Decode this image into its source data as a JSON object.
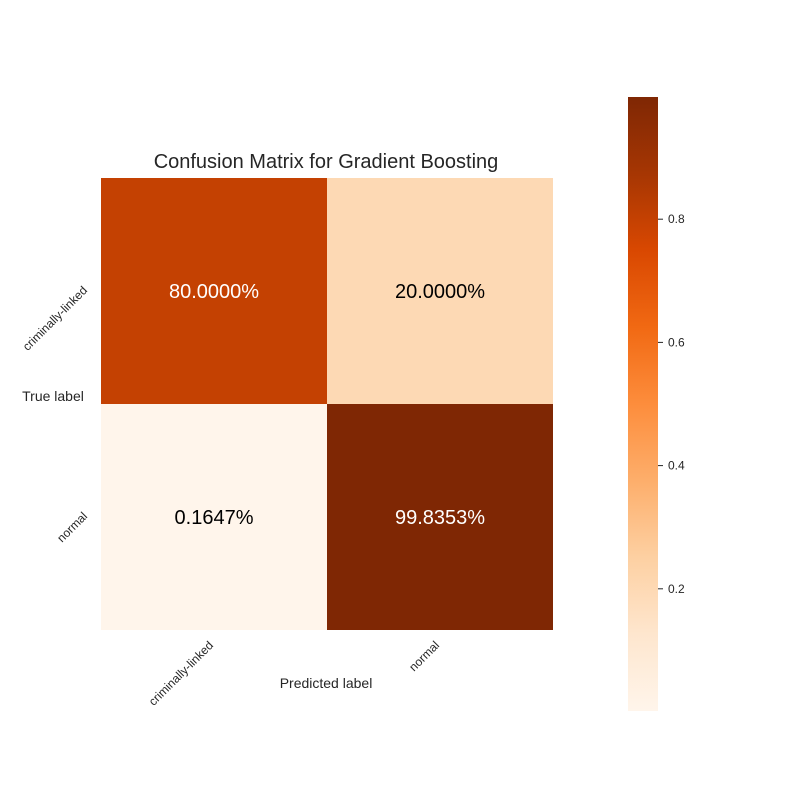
{
  "chart_data": {
    "type": "heatmap",
    "title": "Confusion Matrix for Gradient Boosting",
    "xlabel": "Predicted label",
    "ylabel": "True label",
    "x_categories": [
      "criminally-linked",
      "normal"
    ],
    "y_categories": [
      "criminally-linked",
      "normal"
    ],
    "values": [
      [
        0.8,
        0.2
      ],
      [
        0.001647,
        0.998353
      ]
    ],
    "cell_labels": [
      [
        "80.0000%",
        "20.0000%"
      ],
      [
        "0.1647%",
        "99.8353%"
      ]
    ],
    "colormap": "Oranges",
    "colorbar": {
      "ticks": [
        "0.2",
        "0.4",
        "0.6",
        "0.8"
      ],
      "range": [
        0.001647,
        0.998353
      ]
    },
    "grid": false
  }
}
